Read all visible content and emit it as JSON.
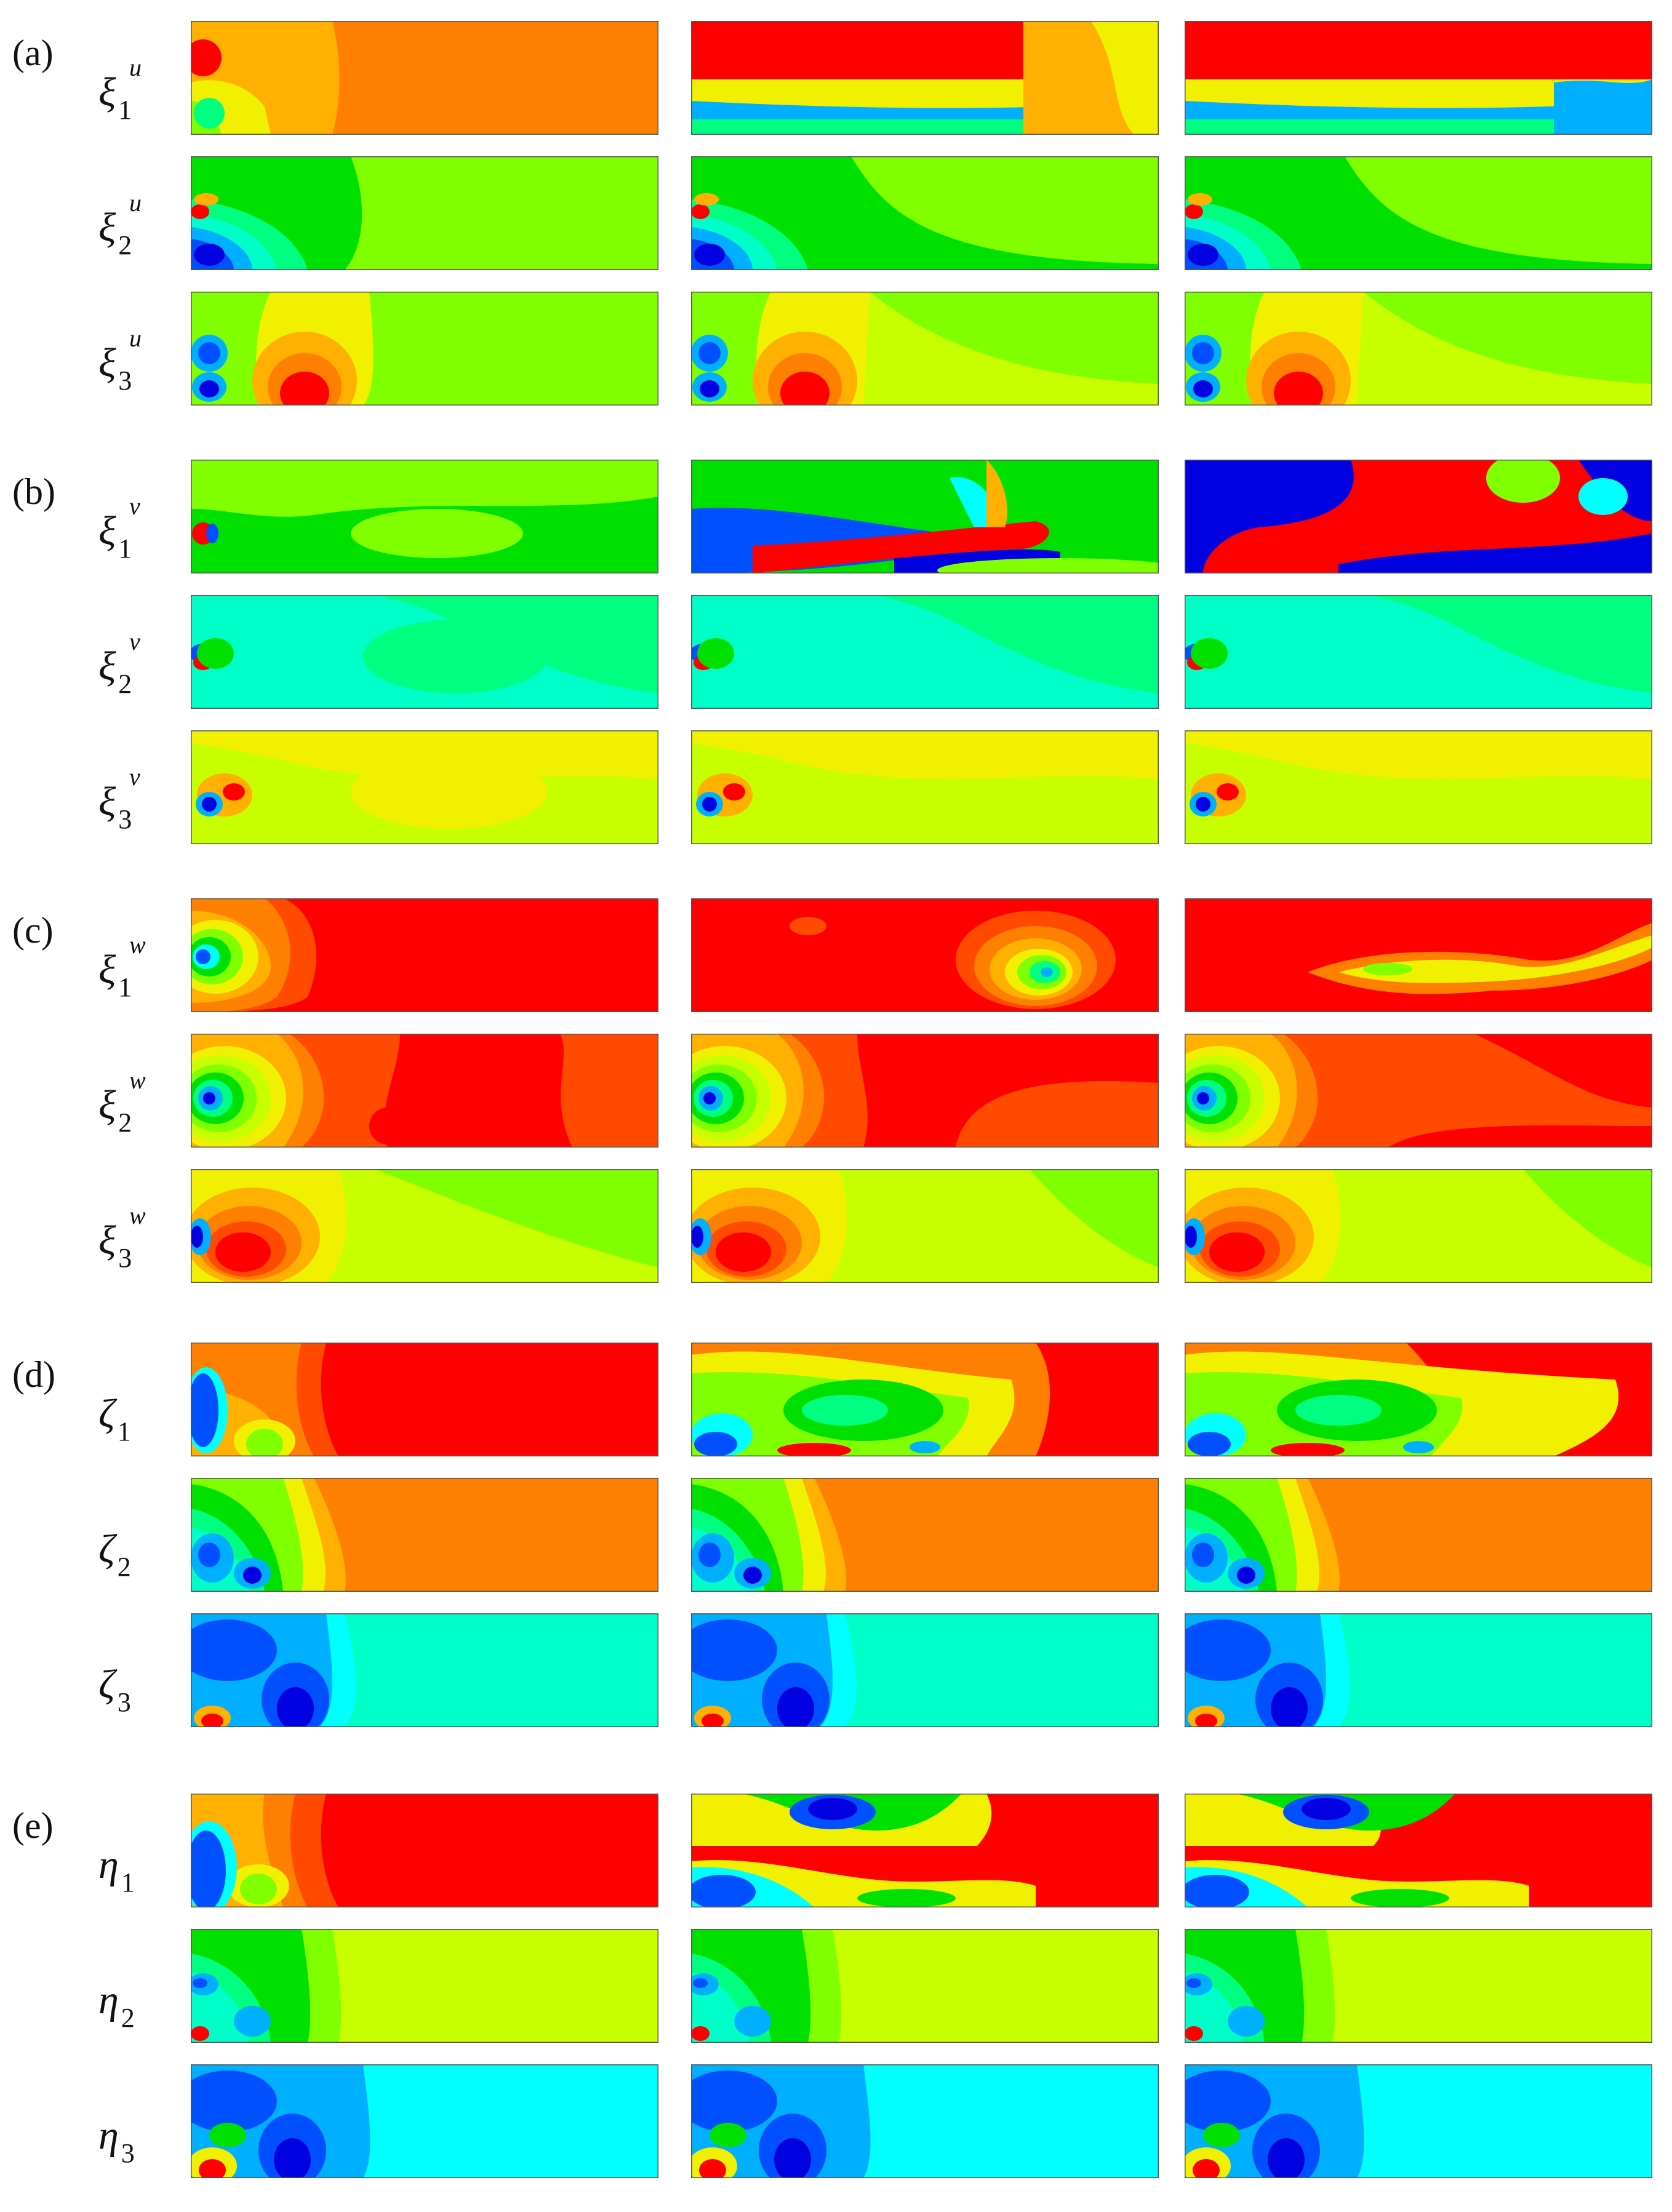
{
  "groups": [
    {
      "label": "(a)",
      "modes": [
        {
          "base": "ξ",
          "sup": "u",
          "sub": "1"
        },
        {
          "base": "ξ",
          "sup": "u",
          "sub": "2"
        },
        {
          "base": "ξ",
          "sup": "u",
          "sub": "3"
        }
      ]
    },
    {
      "label": "(b)",
      "modes": [
        {
          "base": "ξ",
          "sup": "v",
          "sub": "1"
        },
        {
          "base": "ξ",
          "sup": "v",
          "sub": "2"
        },
        {
          "base": "ξ",
          "sup": "v",
          "sub": "3"
        }
      ]
    },
    {
      "label": "(c)",
      "modes": [
        {
          "base": "ξ",
          "sup": "w",
          "sub": "1"
        },
        {
          "base": "ξ",
          "sup": "w",
          "sub": "2"
        },
        {
          "base": "ξ",
          "sup": "w",
          "sub": "3"
        }
      ]
    },
    {
      "label": "(d)",
      "modes": [
        {
          "base": "ζ",
          "sup": "",
          "sub": "1"
        },
        {
          "base": "ζ",
          "sup": "",
          "sub": "2"
        },
        {
          "base": "ζ",
          "sup": "",
          "sub": "3"
        }
      ]
    },
    {
      "label": "(e)",
      "modes": [
        {
          "base": "η",
          "sup": "",
          "sub": "1"
        },
        {
          "base": "η",
          "sup": "",
          "sub": "2"
        },
        {
          "base": "η",
          "sup": "",
          "sub": "3"
        }
      ]
    }
  ],
  "colors": {
    "red": "#ff0000",
    "orange_red": "#ff4a00",
    "orange": "#ff7f00",
    "amber": "#ffb000",
    "yellow": "#f0f000",
    "yellow_green": "#c8ff00",
    "lime": "#80ff00",
    "green": "#00e000",
    "spring": "#00ff80",
    "aqua": "#00ffc8",
    "cyan": "#00ffff",
    "sky": "#00b0ff",
    "blue": "#0050ff",
    "navy": "#0000e0",
    "frame": "#555555"
  }
}
